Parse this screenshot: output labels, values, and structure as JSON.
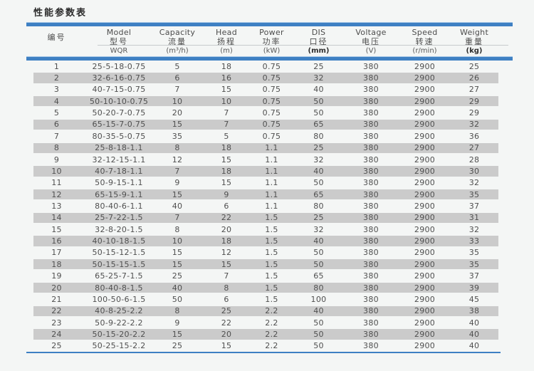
{
  "page_title": "性能参数表",
  "colors": {
    "accent_blue": "#3e80c3",
    "row_shade": "#cbcbcb",
    "background": "#f4f6f5"
  },
  "table": {
    "columns": [
      {
        "en": "",
        "zh": "编号",
        "unit": ""
      },
      {
        "en": "Model",
        "zh": "型号",
        "unit": "WQR"
      },
      {
        "en": "Capacity",
        "zh": "流量",
        "unit": "(m³/h)"
      },
      {
        "en": "Head",
        "zh": "扬程",
        "unit": "(m)"
      },
      {
        "en": "Power",
        "zh": "功率",
        "unit": "(kW)"
      },
      {
        "en": "DIS",
        "zh": "口径",
        "unit": "(mm)",
        "unit_bold": true
      },
      {
        "en": "Voltage",
        "zh": "电压",
        "unit": "(V)"
      },
      {
        "en": "Speed",
        "zh": "转速",
        "unit": "(r/min)"
      },
      {
        "en": "Weight",
        "zh": "重量",
        "unit": "(kg)",
        "unit_bold": true
      }
    ],
    "rows": [
      [
        "1",
        "25-5-18-0.75",
        "5",
        "18",
        "0.75",
        "25",
        "380",
        "2900",
        "25"
      ],
      [
        "2",
        "32-6-16-0.75",
        "6",
        "16",
        "0.75",
        "32",
        "380",
        "2900",
        "26"
      ],
      [
        "3",
        "40-7-15-0.75",
        "7",
        "15",
        "0.75",
        "40",
        "380",
        "2900",
        "27"
      ],
      [
        "4",
        "50-10-10-0.75",
        "10",
        "10",
        "0.75",
        "50",
        "380",
        "2900",
        "29"
      ],
      [
        "5",
        "50-20-7-0.75",
        "20",
        "7",
        "0.75",
        "50",
        "380",
        "2900",
        "29"
      ],
      [
        "6",
        "65-15-7-0.75",
        "15",
        "7",
        "0.75",
        "65",
        "380",
        "2900",
        "32"
      ],
      [
        "7",
        "80-35-5-0.75",
        "35",
        "5",
        "0.75",
        "80",
        "380",
        "2900",
        "36"
      ],
      [
        "8",
        "25-8-18-1.1",
        "8",
        "18",
        "1.1",
        "25",
        "380",
        "2900",
        "27"
      ],
      [
        "9",
        "32-12-15-1.1",
        "12",
        "15",
        "1.1",
        "32",
        "380",
        "2900",
        "28"
      ],
      [
        "10",
        "40-7-18-1.1",
        "7",
        "18",
        "1.1",
        "40",
        "380",
        "2900",
        "30"
      ],
      [
        "11",
        "50-9-15-1.1",
        "9",
        "15",
        "1.1",
        "50",
        "380",
        "2900",
        "32"
      ],
      [
        "12",
        "65-15-9-1.1",
        "15",
        "9",
        "1.1",
        "65",
        "380",
        "2900",
        "35"
      ],
      [
        "13",
        "80-40-6-1.1",
        "40",
        "6",
        "1.1",
        "80",
        "380",
        "2900",
        "37"
      ],
      [
        "14",
        "25-7-22-1.5",
        "7",
        "22",
        "1.5",
        "25",
        "380",
        "2900",
        "31"
      ],
      [
        "15",
        "32-8-20-1.5",
        "8",
        "20",
        "1.5",
        "32",
        "380",
        "2900",
        "32"
      ],
      [
        "16",
        "40-10-18-1.5",
        "10",
        "18",
        "1.5",
        "40",
        "380",
        "2900",
        "33"
      ],
      [
        "17",
        "50-15-12-1.5",
        "15",
        "12",
        "1.5",
        "50",
        "380",
        "2900",
        "35"
      ],
      [
        "18",
        "50-15-15-1.5",
        "15",
        "15",
        "1.5",
        "50",
        "380",
        "2900",
        "35"
      ],
      [
        "19",
        "65-25-7-1.5",
        "25",
        "7",
        "1.5",
        "65",
        "380",
        "2900",
        "37"
      ],
      [
        "20",
        "80-40-8-1.5",
        "40",
        "8",
        "1.5",
        "80",
        "380",
        "2900",
        "39"
      ],
      [
        "21",
        "100-50-6-1.5",
        "50",
        "6",
        "1.5",
        "100",
        "380",
        "2900",
        "45"
      ],
      [
        "22",
        "40-8-25-2.2",
        "8",
        "25",
        "2.2",
        "40",
        "380",
        "2900",
        "38"
      ],
      [
        "23",
        "50-9-22-2.2",
        "9",
        "22",
        "2.2",
        "50",
        "380",
        "2900",
        "40"
      ],
      [
        "24",
        "50-15-20-2.2",
        "15",
        "20",
        "2.2",
        "50",
        "380",
        "2900",
        "40"
      ],
      [
        "25",
        "50-25-15-2.2",
        "25",
        "15",
        "2.2",
        "50",
        "380",
        "2900",
        "40"
      ]
    ]
  }
}
